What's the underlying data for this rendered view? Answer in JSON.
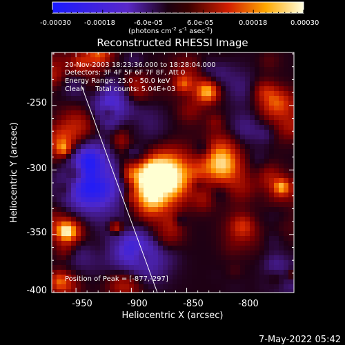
{
  "colorbar": {
    "tick_labels": [
      "-0.00030",
      "-0.00018",
      "-6.0e-05",
      "6.0e-05",
      "0.00018",
      "0.00030"
    ],
    "unit_label": "(photons cm",
    "unit_exp1": "-2",
    "unit_mid": " s",
    "unit_exp2": "-1",
    "unit_mid2": " asec",
    "unit_exp3": "-2",
    "unit_end": ")"
  },
  "plot": {
    "title": "Reconstructed RHESSI Image",
    "xlabel": "Heliocentric X (arcsec)",
    "ylabel": "Heliocentric Y (arcsec)",
    "x_ticks": [
      "-950",
      "-900",
      "-850",
      "-800"
    ],
    "y_ticks": [
      "-250",
      "-300",
      "-350",
      "-400"
    ],
    "info_lines": [
      "20-Nov-2003 18:23:36.000 to 18:28:04.000",
      "Detectors: 3F 4F 5F 6F 7F 8F, Att 0",
      "Energy Range: 25.0 - 50.0 keV",
      "Clean     Total counts: 5.04E+03"
    ],
    "peak_label": "Position of Peak = [-877,-297]"
  },
  "footer": {
    "timestamp": "7-May-2022 05:42"
  }
}
